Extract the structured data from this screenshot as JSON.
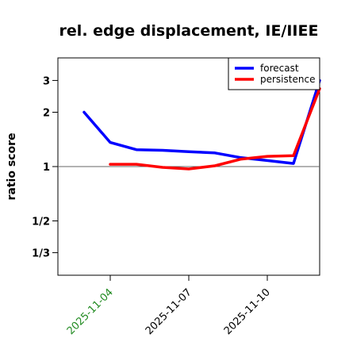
{
  "chart_data": {
    "type": "line",
    "title": "rel. edge displacement, IE/IIEE",
    "xlabel": "",
    "ylabel": "ratio score",
    "y_scale": "log",
    "y_ticks": [
      {
        "label": "1/3",
        "value": 0.3333
      },
      {
        "label": "1/2",
        "value": 0.5
      },
      {
        "label": "1",
        "value": 1
      },
      {
        "label": "2",
        "value": 2
      },
      {
        "label": "3",
        "value": 3
      }
    ],
    "ylim": [
      0.25,
      4.0
    ],
    "x_ticks": [
      {
        "label": "2025-11-04",
        "date": "2025-11-04",
        "color": "#228B22"
      },
      {
        "label": "2025-11-07",
        "date": "2025-11-07",
        "color": "#000000"
      },
      {
        "label": "2025-11-10",
        "date": "2025-11-10",
        "color": "#000000"
      }
    ],
    "xlim": [
      "2025-11-02",
      "2025-11-12"
    ],
    "reference_line": 1,
    "legend_position": "top-right",
    "series": [
      {
        "name": "forecast",
        "color": "#0000ff",
        "x": [
          "2025-11-03",
          "2025-11-04",
          "2025-11-05",
          "2025-11-06",
          "2025-11-07",
          "2025-11-08",
          "2025-11-09",
          "2025-11-10",
          "2025-11-11",
          "2025-11-12"
        ],
        "y": [
          2.0,
          1.36,
          1.24,
          1.23,
          1.21,
          1.19,
          1.12,
          1.08,
          1.04,
          3.0
        ]
      },
      {
        "name": "persistence",
        "color": "#ff0000",
        "x": [
          "2025-11-04",
          "2025-11-05",
          "2025-11-06",
          "2025-11-07",
          "2025-11-08",
          "2025-11-09",
          "2025-11-10",
          "2025-11-11",
          "2025-11-12"
        ],
        "y": [
          1.03,
          1.03,
          0.99,
          0.97,
          1.01,
          1.1,
          1.14,
          1.15,
          2.7
        ]
      }
    ]
  }
}
